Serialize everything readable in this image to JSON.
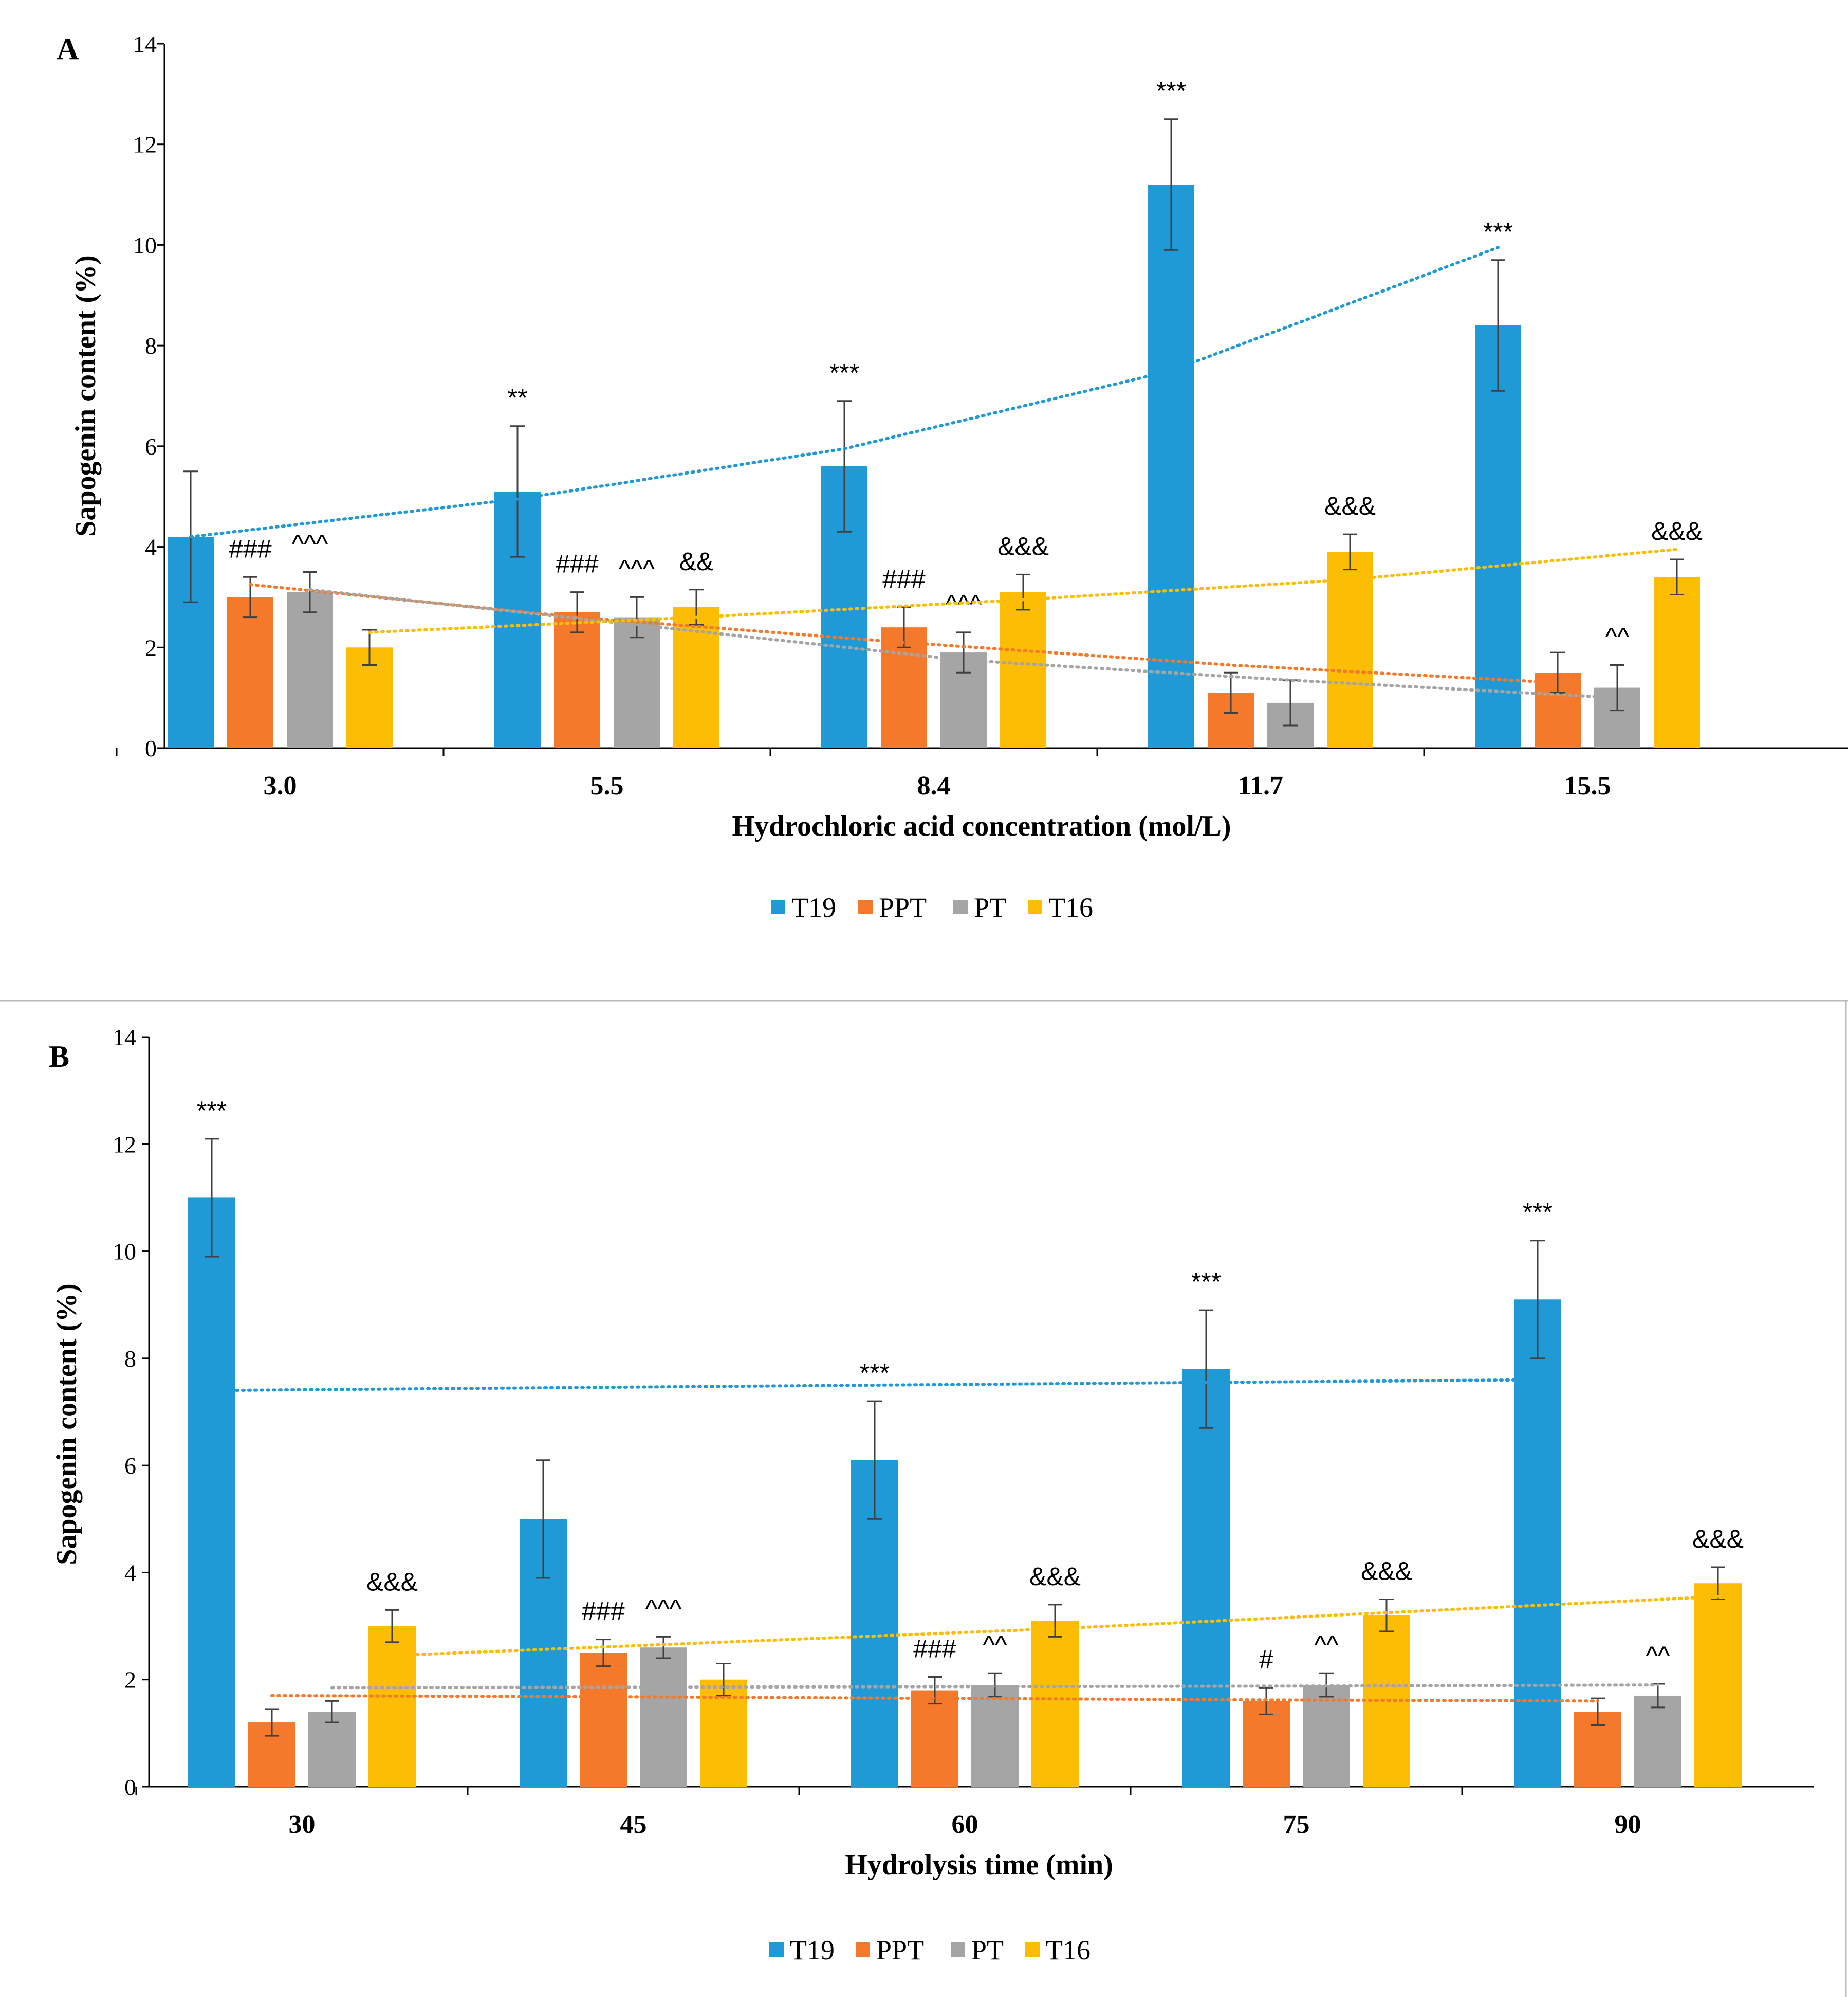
{
  "colors": {
    "T19": "#1f9ad6",
    "PPT": "#f5792a",
    "PT": "#a5a5a5",
    "T16": "#fdbd05"
  },
  "chart_data": [
    {
      "panel": "A",
      "type": "bar",
      "xlabel": "Hydrochloric acid concentration (mol/L)",
      "ylabel": "Sapogenin content (%)",
      "ylim": [
        0,
        14
      ],
      "yticks": [
        "0",
        "2",
        "4",
        "6",
        "8",
        "10",
        "12",
        "14"
      ],
      "categories": [
        "3.0",
        "5.5",
        "8.4",
        "11.7",
        "15.5"
      ],
      "legend": [
        "T19",
        "PPT",
        "PT",
        "T16"
      ],
      "series": [
        {
          "name": "T19",
          "values": [
            4.2,
            5.1,
            5.6,
            11.2,
            8.4
          ],
          "errors": [
            1.3,
            1.3,
            1.3,
            1.3,
            1.3
          ],
          "marks": [
            "",
            "**",
            "***",
            "***",
            "***"
          ]
        },
        {
          "name": "PPT",
          "values": [
            3.0,
            2.7,
            2.4,
            1.1,
            1.5
          ],
          "errors": [
            0.4,
            0.4,
            0.4,
            0.4,
            0.4
          ],
          "marks": [
            "###",
            "###",
            "###",
            "",
            ""
          ]
        },
        {
          "name": "PT",
          "values": [
            3.1,
            2.6,
            1.9,
            0.9,
            1.2
          ],
          "errors": [
            0.4,
            0.4,
            0.4,
            0.45,
            0.45
          ],
          "marks": [
            "^^^",
            "^^^",
            "^^^",
            "",
            "^^"
          ]
        },
        {
          "name": "T16",
          "values": [
            2.0,
            2.8,
            3.1,
            3.9,
            3.4
          ],
          "errors": [
            0.35,
            0.35,
            0.35,
            0.35,
            0.35
          ],
          "marks": [
            "",
            "&&",
            "&&&",
            "&&&",
            "&&&"
          ]
        }
      ],
      "trendlines": [
        {
          "series": "T19",
          "values": [
            4.2,
            4.95,
            5.95,
            7.5,
            9.95
          ]
        },
        {
          "series": "PPT",
          "values": [
            3.25,
            2.6,
            2.1,
            1.65,
            1.3
          ]
        },
        {
          "series": "PT",
          "values": [
            3.15,
            2.45,
            1.75,
            1.35,
            1.0
          ]
        },
        {
          "series": "T16",
          "values": [
            2.3,
            2.6,
            2.95,
            3.35,
            3.95
          ]
        }
      ]
    },
    {
      "panel": "B",
      "type": "bar",
      "xlabel": "Hydrolysis time (min)",
      "ylabel": "Sapogenin content (%)",
      "ylim": [
        0,
        14
      ],
      "yticks": [
        "0",
        "2",
        "4",
        "6",
        "8",
        "10",
        "12",
        "14"
      ],
      "categories": [
        "30",
        "45",
        "60",
        "75",
        "90"
      ],
      "legend": [
        "T19",
        "PPT",
        "PT",
        "T16"
      ],
      "series": [
        {
          "name": "T19",
          "values": [
            11.0,
            5.0,
            6.1,
            7.8,
            9.1
          ],
          "errors": [
            1.1,
            1.1,
            1.1,
            1.1,
            1.1
          ],
          "marks": [
            "***",
            "",
            "***",
            "***",
            "***"
          ]
        },
        {
          "name": "PPT",
          "values": [
            1.2,
            2.5,
            1.8,
            1.6,
            1.4
          ],
          "errors": [
            0.25,
            0.25,
            0.25,
            0.25,
            0.25
          ],
          "marks": [
            "",
            "###",
            "###",
            "#",
            ""
          ]
        },
        {
          "name": "PT",
          "values": [
            1.4,
            2.6,
            1.9,
            1.9,
            1.7
          ],
          "errors": [
            0.2,
            0.2,
            0.22,
            0.22,
            0.22
          ],
          "marks": [
            "",
            "^^^",
            "^^",
            "^^",
            "^^"
          ]
        },
        {
          "name": "T16",
          "values": [
            3.0,
            2.0,
            3.1,
            3.2,
            3.8
          ],
          "errors": [
            0.3,
            0.3,
            0.3,
            0.3,
            0.3
          ],
          "marks": [
            "&&&",
            "",
            "&&&",
            "&&&",
            "&&&"
          ]
        }
      ],
      "trendlines": [
        {
          "series": "T19",
          "values": [
            7.4,
            7.45,
            7.5,
            7.55,
            7.6
          ]
        },
        {
          "series": "PPT",
          "values": [
            1.7,
            1.68,
            1.65,
            1.62,
            1.6
          ]
        },
        {
          "series": "PT",
          "values": [
            1.85,
            1.86,
            1.87,
            1.88,
            1.9
          ]
        },
        {
          "series": "T16",
          "values": [
            2.45,
            2.7,
            2.95,
            3.25,
            3.55
          ]
        }
      ]
    }
  ]
}
